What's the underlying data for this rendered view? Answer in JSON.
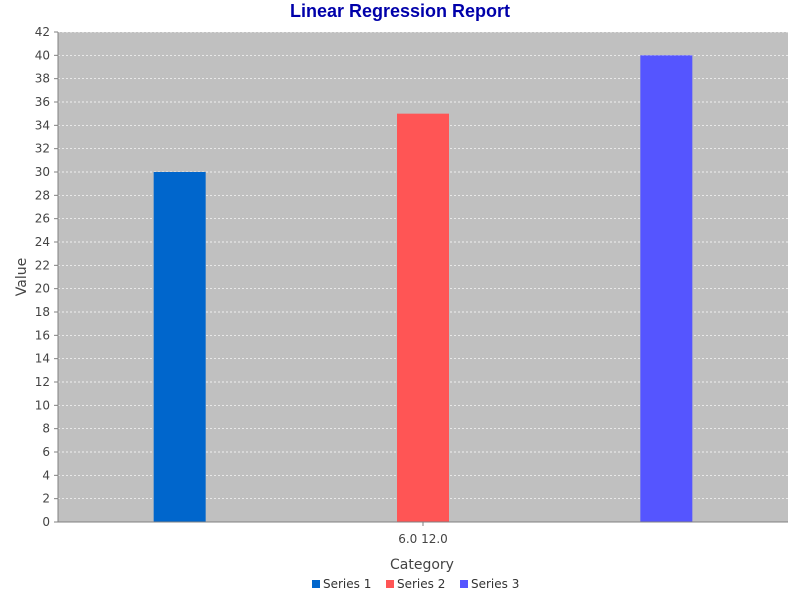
{
  "chart_data": {
    "type": "bar",
    "title": "Linear Regression Report",
    "xlabel": "Category",
    "ylabel": "Value",
    "categories": [
      "6.0 12.0"
    ],
    "ylim": [
      0,
      42
    ],
    "y_ticks": [
      0,
      2,
      4,
      6,
      8,
      10,
      12,
      14,
      16,
      18,
      20,
      22,
      24,
      26,
      28,
      30,
      32,
      34,
      36,
      38,
      40,
      42
    ],
    "grid": true,
    "legend_position": "bottom",
    "series": [
      {
        "name": "Series 1",
        "values": [
          30
        ],
        "color": "#0066CC"
      },
      {
        "name": "Series 2",
        "values": [
          35
        ],
        "color": "#FF5555"
      },
      {
        "name": "Series 3",
        "values": [
          40
        ],
        "color": "#5555FF"
      }
    ]
  },
  "colors": {
    "title": "#0000AA",
    "plot_background": "#C0C0C0",
    "gridline": "#FFFFFF",
    "axis_line": "#808080"
  }
}
